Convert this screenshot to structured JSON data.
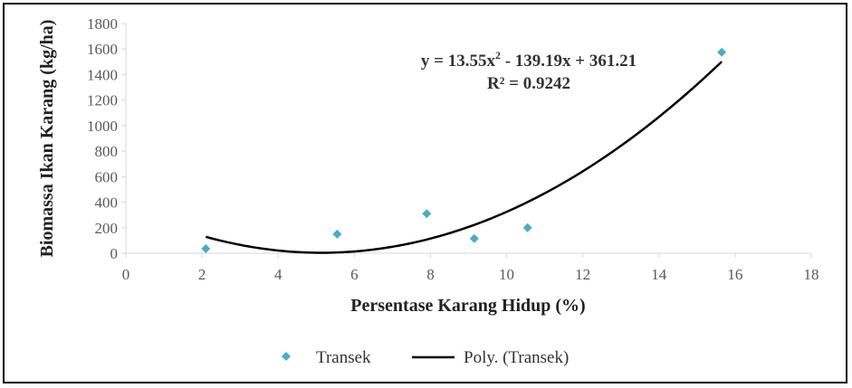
{
  "chart_data": {
    "type": "scatter",
    "title": "",
    "xlabel": "Persentase Karang Hidup  (%)",
    "ylabel": "Biomassa Ikan Karang (kg/ha)",
    "xlim": [
      0,
      18
    ],
    "ylim": [
      0,
      1800
    ],
    "x_ticks": [
      "0",
      "2",
      "4",
      "6",
      "8",
      "10",
      "12",
      "14",
      "16",
      "18"
    ],
    "y_ticks": [
      "0",
      "200",
      "400",
      "600",
      "800",
      "1000",
      "1200",
      "1400",
      "1600",
      "1800"
    ],
    "grid": false,
    "legend_position": "bottom",
    "series": [
      {
        "name": "Transek",
        "marker": "diamond",
        "color": "#4BACC6",
        "x": [
          2.1,
          5.55,
          7.9,
          9.15,
          10.55,
          15.65
        ],
        "y": [
          35,
          150,
          310,
          115,
          200,
          1575
        ]
      }
    ],
    "trendline": {
      "name": "Poly. (Transek)",
      "type": "polynomial",
      "order": 2,
      "color": "#000000",
      "coefficients": [
        13.55,
        -139.19,
        361.21
      ],
      "x_range": [
        2.1,
        15.65
      ],
      "equation": "y = 13.55x² - 139.19x + 361.21",
      "equation_main": "y = 13.55x",
      "equation_sup": "2",
      "equation_rest": " - 139.19x + 361.21",
      "r_squared": "R² = 0.9242"
    }
  }
}
